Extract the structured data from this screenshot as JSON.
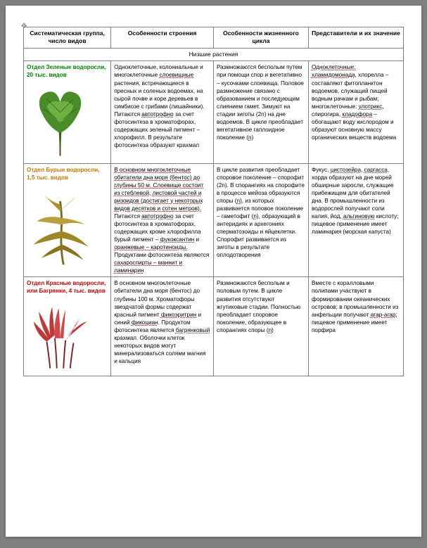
{
  "headers": {
    "col1": "Систематическая группа, число видов",
    "col2": "Особенности строения",
    "col3": "Особенности жизненного цикла",
    "col4": "Представители и их значение"
  },
  "section_title": "Низшие растения",
  "rows": [
    {
      "group_color": "#008000",
      "group_title": "Отдел Зеленые водоросли, 20 тыс. видов",
      "structure": "Одноклеточные, колониальные и многоклеточные <span class='u'>слоевищные</span> растения, встречающиеся в пресных и соленых водоемах, на сырой почве и коре деревьев в симбиозе с грибами (лишайники). Питаются <span class='u'>автотрофно</span> за счет фотосинтеза в хроматофорах, содержащих зеленый пигмент – хлорофилл. В результате фотосинтеза образуют крахмал",
      "lifecycle": "Размножаются бесполым путем при помощи спор и вегетативно – кусочками слоевища. Половое размножение связано с образованием и последующим слиянием гамет. Зимуют на стадии зиготы (2n) на дне водоемов. В цикле преобладает вегетативное гаплоидное поколение (<span class='u'>n</span>)",
      "reps": "<span class='u'>Одноклеточные:</span> <span class='u'>хламидомонада</span>, хлорелла – составляют фитопланктон водоемов, служащий пищей водным рачкам и рыбам; многоклеточные: <span class='u'>улотрикс</span>, спирогира, <span class='u'>кладофора</span> – обогащают воду кислородом и образуют основную массу органических веществ водоема",
      "svg": "green"
    },
    {
      "group_color": "#c87800",
      "group_title": "Отдел Бурые водоросли, 1,5 тыс. видов",
      "structure": "<span class='u'>В основном многоклеточные обитатели дна моря (бентос) до глубины 50 м. Слоевище состоит из стеблевой, листовой частей и ризоидов (достигает у некоторых видов десятков и сотен метров).</span> Питаются <span class='u'>автотрофно</span> за счет фотосинтеза в хроматофорах, содержащих кроме хлорофилла бурый пигмент – <span class='u'>фукоксантин</span> и <span class='u'>оранжевые – каротиноиды.</span> Продуктами фотосинтеза являются <span class='u'>сахароспирты – маннит и ламинарин</span>",
      "lifecycle": "В цикле развития преобладает споровое поколение – спорофит (2n). В спорангиях на спорофите в процессе мейоза образуются споры (<span class='u'>n</span>), из которых развивается половое поколение – гаметофит (<span class='u'>n</span>), образующий в антеридиях и архегониях сперматозоиды и яйцеклетки. Спорофит развивается из зиготы в результате оплодотворения",
      "reps": "Фукус, <span class='u'>цистозейра</span>, <span class='u'>саргасса</span>, хорда образуют на дне морей обширные заросли, служащие прибежищем для обитателей дна. В промышленности из водорослей получают соли калия, йод, <span class='u'>альгиновую</span> кислоту; пищевое применение имеет ламинария (морская капуста)",
      "svg": "brown"
    },
    {
      "group_color": "#cc0000",
      "group_title": "Отдел Красные водоросли, или Багрянки, 4 тыс. видов",
      "structure": "В основном многоклеточные обитатели дна моря (бентос) до глубины 100 м. Хроматофоры звездчатой формы содержат красный пигмент <span class='u'>фикоэритрин</span> и синий <span class='u'>фикоциан</span>. Продуктом фотосинтеза является <span class='u'>багрянковый</span> крахмал. Оболочки клеток некоторых видов могут минерализоваться солями магния и кальция",
      "lifecycle": "Размножаются бесполым и половым путем. В цикле развития отсутствуют жгутиковые стадии. Полностью преобладает споровое поколение, образующее в спорангиях споры (<span class='u'>n</span>)",
      "reps": "Вместе с коралловыми полипами участвуют в формировании океанических островов; в промышленности из анфельции получают <span class='u'>агар-агар</span>; пищевое применение имеет порфира",
      "svg": "red"
    }
  ]
}
